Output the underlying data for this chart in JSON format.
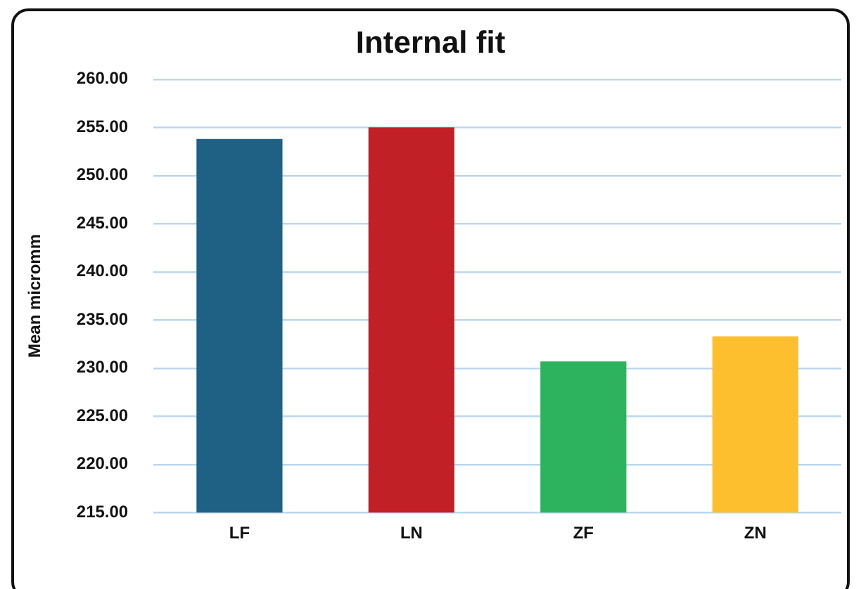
{
  "chart_data": {
    "type": "bar",
    "title": "Internal fit",
    "ylabel": "Mean micromm",
    "categories": [
      "LF",
      "LN",
      "ZF",
      "ZN"
    ],
    "values": [
      253.8,
      255.0,
      230.7,
      233.3
    ],
    "colors": [
      "#1f6184",
      "#c02026",
      "#2db35d",
      "#fdbf2d"
    ],
    "ylim": [
      215,
      260
    ],
    "yticks": [
      {
        "value": 215,
        "label": "215.00"
      },
      {
        "value": 220,
        "label": "220.00"
      },
      {
        "value": 225,
        "label": "225.00"
      },
      {
        "value": 230,
        "label": "230.00"
      },
      {
        "value": 235,
        "label": "235.00"
      },
      {
        "value": 240,
        "label": "240.00"
      },
      {
        "value": 245,
        "label": "245.00"
      },
      {
        "value": 250,
        "label": "250.00"
      },
      {
        "value": 255,
        "label": "255.00"
      },
      {
        "value": 260,
        "label": "260.00"
      }
    ],
    "grid": "y",
    "legend": false
  }
}
